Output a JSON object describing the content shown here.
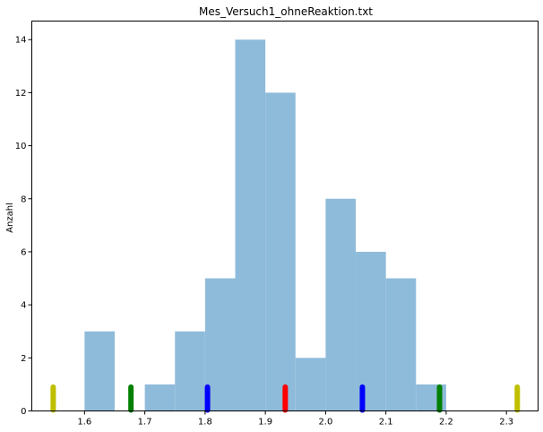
{
  "chart_data": {
    "type": "bar",
    "title": "Mes_Versuch1_ohneReaktion.txt",
    "xlabel": "",
    "ylabel": "Anzahl",
    "xlim": [
      1.5125,
      2.3525
    ],
    "ylim": [
      0,
      14.7
    ],
    "x_ticks": [
      1.6,
      1.7,
      1.8,
      1.9,
      2.0,
      2.1,
      2.2,
      2.3
    ],
    "x_tick_labels": [
      "1.6",
      "1.7",
      "1.8",
      "1.9",
      "2.0",
      "2.1",
      "2.2",
      "2.3"
    ],
    "y_ticks": [
      0,
      2,
      4,
      6,
      8,
      10,
      12,
      14
    ],
    "y_tick_labels": [
      "0",
      "2",
      "4",
      "6",
      "8",
      "10",
      "12",
      "14"
    ],
    "bar_color": "#8fbbda",
    "bins": [
      {
        "left": 1.6,
        "right": 1.65,
        "value": 3
      },
      {
        "left": 1.7,
        "right": 1.75,
        "value": 1
      },
      {
        "left": 1.75,
        "right": 1.8,
        "value": 3
      },
      {
        "left": 1.8,
        "right": 1.85,
        "value": 5
      },
      {
        "left": 1.85,
        "right": 1.9,
        "value": 14
      },
      {
        "left": 1.9,
        "right": 1.95,
        "value": 12
      },
      {
        "left": 1.95,
        "right": 2.0,
        "value": 2
      },
      {
        "left": 2.0,
        "right": 2.05,
        "value": 8
      },
      {
        "left": 2.05,
        "right": 2.1,
        "value": 6
      },
      {
        "left": 2.1,
        "right": 2.15,
        "value": 5
      },
      {
        "left": 2.15,
        "right": 2.2,
        "value": 1
      }
    ],
    "markers": [
      {
        "x": 1.548,
        "height": 1,
        "color": "#bfbf00"
      },
      {
        "x": 1.677,
        "height": 1,
        "color": "#008000"
      },
      {
        "x": 1.804,
        "height": 1,
        "color": "#0000ff"
      },
      {
        "x": 1.933,
        "height": 1,
        "color": "#ff0000"
      },
      {
        "x": 2.061,
        "height": 1,
        "color": "#0000ff"
      },
      {
        "x": 2.189,
        "height": 1,
        "color": "#008000"
      },
      {
        "x": 2.318,
        "height": 1,
        "color": "#bfbf00"
      }
    ]
  }
}
